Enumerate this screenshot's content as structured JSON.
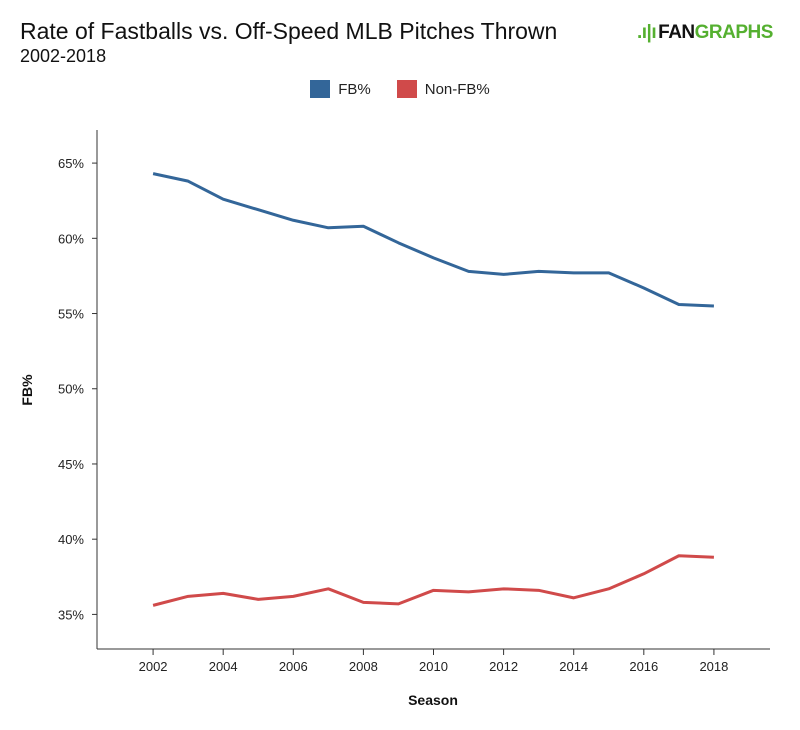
{
  "header": {
    "title": "Rate of Fastballs vs. Off-Speed MLB Pitches Thrown",
    "subtitle": "2002-2018",
    "logo_text": "FANGRAPHS",
    "logo_part1": "FAN",
    "logo_part2": "GRAPHS"
  },
  "chart_data": {
    "type": "line",
    "title": "Rate of Fastballs vs. Off-Speed MLB Pitches Thrown",
    "subtitle": "2002-2018",
    "xlabel": "Season",
    "ylabel": "FB%",
    "x": [
      2002,
      2003,
      2004,
      2005,
      2006,
      2007,
      2008,
      2009,
      2010,
      2011,
      2012,
      2013,
      2014,
      2015,
      2016,
      2017,
      2018
    ],
    "xlim": [
      2000.4,
      2019.6
    ],
    "ylim": [
      32.7,
      67.2
    ],
    "x_ticks": [
      2002,
      2004,
      2006,
      2008,
      2010,
      2012,
      2014,
      2016,
      2018
    ],
    "x_tick_labels": [
      "2002",
      "2004",
      "2006",
      "2008",
      "2010",
      "2012",
      "2014",
      "2016",
      "2018"
    ],
    "y_ticks": [
      35,
      40,
      45,
      50,
      55,
      60,
      65
    ],
    "y_tick_labels": [
      "35%",
      "40%",
      "45%",
      "50%",
      "55%",
      "60%",
      "65%"
    ],
    "grid": false,
    "legend_placement": "top-center",
    "series": [
      {
        "name": "FB%",
        "color": "#336699",
        "values": [
          64.3,
          63.8,
          62.6,
          61.9,
          61.2,
          60.7,
          60.8,
          59.7,
          58.7,
          57.8,
          57.6,
          57.8,
          57.7,
          57.7,
          56.7,
          55.6,
          55.5
        ]
      },
      {
        "name": "Non-FB%",
        "color": "#d04a4a",
        "values": [
          35.6,
          36.2,
          36.4,
          36.0,
          36.2,
          36.7,
          35.8,
          35.7,
          36.6,
          36.5,
          36.7,
          36.6,
          36.1,
          36.7,
          37.7,
          38.9,
          38.8
        ]
      }
    ]
  }
}
